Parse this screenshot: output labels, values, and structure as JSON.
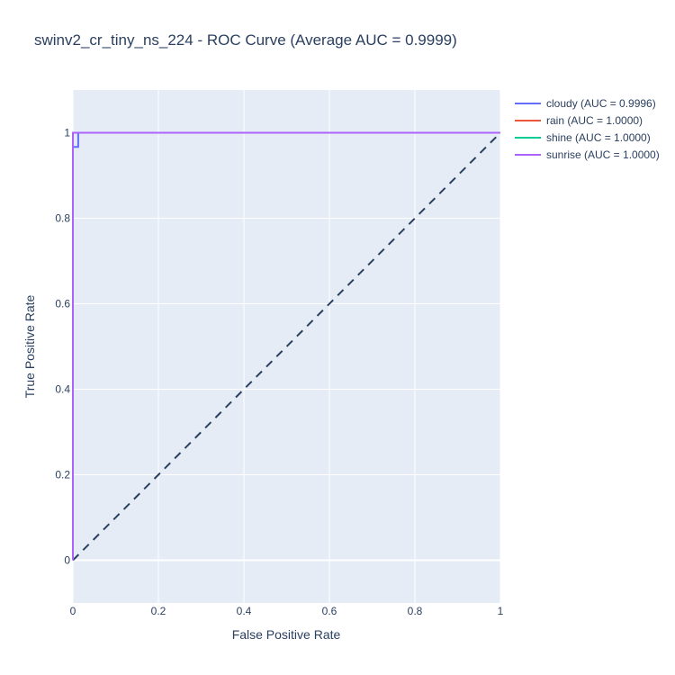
{
  "chart_data": {
    "type": "line",
    "title": "swinv2_cr_tiny_ns_224 - ROC Curve (Average AUC = 0.9999)",
    "xlabel": "False Positive Rate",
    "ylabel": "True Positive Rate",
    "xlim": [
      0,
      1
    ],
    "ylim": [
      -0.1,
      1.1
    ],
    "x_ticks": [
      "0",
      "0.2",
      "0.4",
      "0.6",
      "0.8",
      "1"
    ],
    "y_ticks": [
      "0",
      "0.2",
      "0.4",
      "0.6",
      "0.8",
      "1"
    ],
    "grid": true,
    "legend_position": "top-right-outside",
    "series": [
      {
        "name": "cloudy (AUC = 0.9996)",
        "color": "#636efa",
        "x": [
          0,
          0,
          0,
          0.0125,
          0.0125,
          1
        ],
        "y": [
          0,
          0.967,
          0.967,
          0.967,
          1,
          1
        ]
      },
      {
        "name": "rain (AUC = 1.0000)",
        "color": "#ef553b",
        "x": [
          0,
          0,
          1
        ],
        "y": [
          0,
          1,
          1
        ]
      },
      {
        "name": "shine (AUC = 1.0000)",
        "color": "#00cc96",
        "x": [
          0,
          0,
          1
        ],
        "y": [
          0,
          1,
          1
        ]
      },
      {
        "name": "sunrise (AUC = 1.0000)",
        "color": "#ab63fa",
        "x": [
          0,
          0,
          1
        ],
        "y": [
          0,
          1,
          1
        ]
      }
    ],
    "reference_line": {
      "x": [
        0,
        1
      ],
      "y": [
        0,
        1
      ],
      "color": "#2a3f5f",
      "style": "dashed"
    }
  }
}
